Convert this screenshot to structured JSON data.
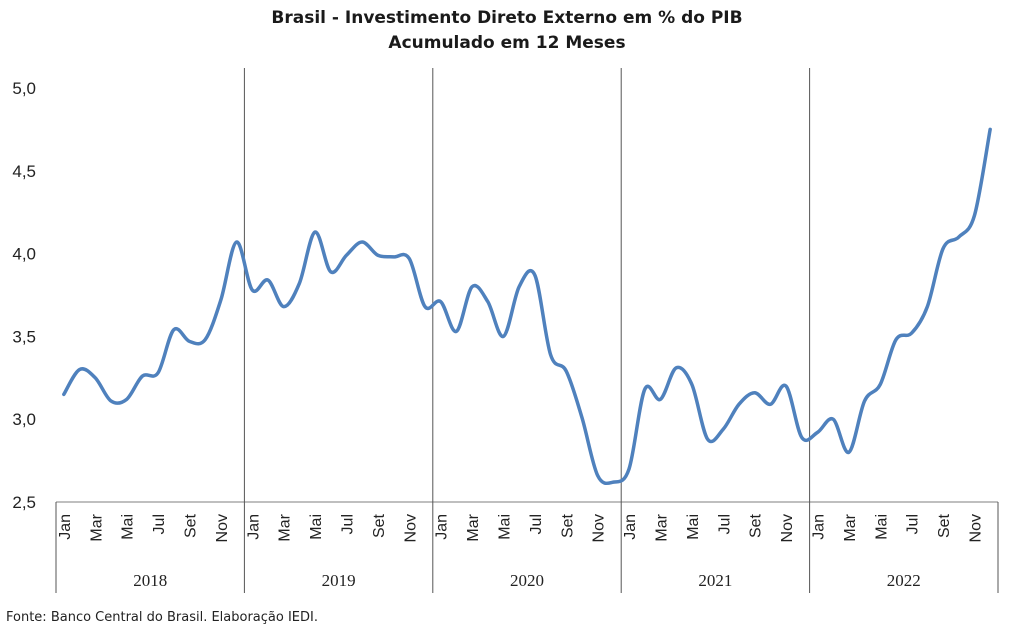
{
  "chart_data": {
    "type": "line",
    "title": "Brasil - Investimento Direto Externo em % do PIB",
    "subtitle": "Acumulado em 12 Meses",
    "ylim": [
      2.5,
      5.0
    ],
    "y_ticks": [
      "2,5",
      "3,0",
      "3,5",
      "4,0",
      "4,5",
      "5,0"
    ],
    "y_tick_values": [
      2.5,
      3.0,
      3.5,
      4.0,
      4.5,
      5.0
    ],
    "month_labels": [
      "Jan",
      "Mar",
      "Mai",
      "Jul",
      "Set",
      "Nov"
    ],
    "years": [
      "2018",
      "2019",
      "2020",
      "2021",
      "2022"
    ],
    "line_color": "#4f81bd",
    "series": [
      {
        "values": [
          3.15,
          3.3,
          3.25,
          3.11,
          3.12,
          3.26,
          3.28,
          3.54,
          3.47,
          3.48,
          3.72,
          4.07,
          3.78,
          3.84,
          3.68,
          3.82,
          4.13,
          3.89,
          3.99,
          4.07,
          3.99,
          3.98,
          3.97,
          3.68,
          3.71,
          3.53,
          3.8,
          3.71,
          3.5,
          3.8,
          3.87,
          3.39,
          3.29,
          3.01,
          2.66,
          2.62,
          2.7,
          3.18,
          3.12,
          3.31,
          3.21,
          2.88,
          2.94,
          3.09,
          3.16,
          3.09,
          3.2,
          2.89,
          2.92,
          3.0,
          2.8,
          3.11,
          3.21,
          3.48,
          3.52,
          3.68,
          4.03,
          4.1,
          4.23,
          4.75
        ]
      }
    ],
    "grid": false
  },
  "source": "Fonte: Banco Central do Brasil. Elaboração IEDI."
}
